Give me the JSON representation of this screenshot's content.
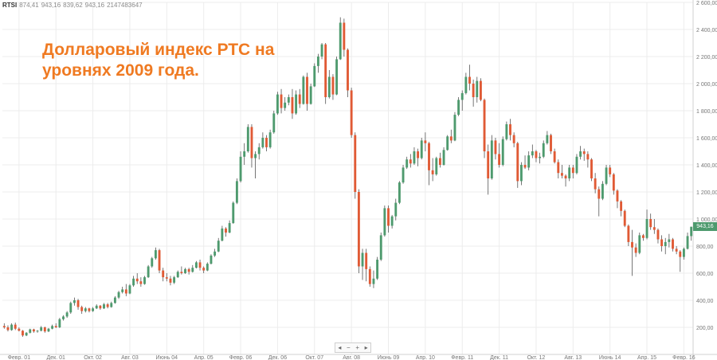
{
  "header": {
    "symbol": "RTSI",
    "open": "874,41",
    "high": "943,16",
    "low": "839,62",
    "close": "943,16",
    "volume": "2147483647"
  },
  "title": {
    "line1": "Долларовый индекс РТС на",
    "line2": "уровнях 2009 года."
  },
  "zoom_controls": [
    "◂",
    "−",
    "+",
    "▸"
  ],
  "last_price_label": "943,16",
  "colors": {
    "up": "#4e9a6e",
    "down": "#e05a35",
    "title": "#ef7a22",
    "grid": "#ececec"
  },
  "chart_data": {
    "type": "candlestick",
    "y_axis": {
      "min": 0,
      "max": 2600,
      "ticks": [
        200,
        400,
        600,
        800,
        1000,
        1200,
        1400,
        1600,
        1800,
        2000,
        2200,
        2400,
        2600
      ],
      "tick_labels": [
        "200,00",
        "400,00",
        "600,00",
        "800,00",
        "1 000,00",
        "1 200,00",
        "1 400,00",
        "1 600,00",
        "1 800,00",
        "2 000,00",
        "2 200,00",
        "2 400,00",
        "2 600,00"
      ],
      "position": "right"
    },
    "x_axis": {
      "start": "2000-10",
      "end": "2016-04",
      "ticks": [
        {
          "label": "Февр. 01",
          "date": "2001-02"
        },
        {
          "label": "Дек. 01",
          "date": "2001-12"
        },
        {
          "label": "Окт. 02",
          "date": "2002-10"
        },
        {
          "label": "Авг. 03",
          "date": "2003-08"
        },
        {
          "label": "Июнь 04",
          "date": "2004-06"
        },
        {
          "label": "Апр. 05",
          "date": "2005-04"
        },
        {
          "label": "Февр. 06",
          "date": "2006-02"
        },
        {
          "label": "Дек. 06",
          "date": "2006-12"
        },
        {
          "label": "Окт. 07",
          "date": "2007-10"
        },
        {
          "label": "Авг. 08",
          "date": "2008-08"
        },
        {
          "label": "Июнь 09",
          "date": "2009-06"
        },
        {
          "label": "Апр. 10",
          "date": "2010-04"
        },
        {
          "label": "Февр. 11",
          "date": "2011-02"
        },
        {
          "label": "Дек. 11",
          "date": "2011-12"
        },
        {
          "label": "Окт. 12",
          "date": "2012-10"
        },
        {
          "label": "Авг. 13",
          "date": "2013-08"
        },
        {
          "label": "Июнь 14",
          "date": "2014-06"
        },
        {
          "label": "Апр. 15",
          "date": "2015-04"
        },
        {
          "label": "Февр. 16",
          "date": "2016-02"
        }
      ]
    },
    "grid": true,
    "candles": [
      [
        "2000-10",
        210,
        230,
        190,
        200
      ],
      [
        "2000-11",
        200,
        215,
        170,
        180
      ],
      [
        "2000-12",
        180,
        230,
        175,
        220
      ],
      [
        "2001-01",
        220,
        235,
        180,
        190
      ],
      [
        "2001-02",
        190,
        200,
        170,
        175
      ],
      [
        "2001-03",
        175,
        180,
        130,
        140
      ],
      [
        "2001-04",
        140,
        165,
        135,
        160
      ],
      [
        "2001-05",
        160,
        190,
        155,
        185
      ],
      [
        "2001-06",
        185,
        190,
        160,
        170
      ],
      [
        "2001-07",
        170,
        180,
        160,
        175
      ],
      [
        "2001-08",
        175,
        210,
        170,
        200
      ],
      [
        "2001-09",
        200,
        205,
        160,
        170
      ],
      [
        "2001-10",
        170,
        195,
        165,
        190
      ],
      [
        "2001-11",
        190,
        220,
        185,
        210
      ],
      [
        "2001-12",
        210,
        230,
        195,
        200
      ],
      [
        "2002-01",
        200,
        270,
        195,
        260
      ],
      [
        "2002-02",
        260,
        290,
        250,
        280
      ],
      [
        "2002-03",
        280,
        320,
        270,
        310
      ],
      [
        "2002-04",
        310,
        390,
        300,
        380
      ],
      [
        "2002-05",
        380,
        420,
        360,
        400
      ],
      [
        "2002-06",
        400,
        410,
        330,
        350
      ],
      [
        "2002-07",
        350,
        360,
        300,
        320
      ],
      [
        "2002-08",
        320,
        350,
        310,
        340
      ],
      [
        "2002-09",
        340,
        345,
        310,
        320
      ],
      [
        "2002-10",
        320,
        350,
        315,
        340
      ],
      [
        "2002-11",
        340,
        370,
        335,
        360
      ],
      [
        "2002-12",
        360,
        365,
        330,
        340
      ],
      [
        "2003-01",
        340,
        380,
        335,
        370
      ],
      [
        "2003-02",
        370,
        380,
        340,
        350
      ],
      [
        "2003-03",
        350,
        390,
        345,
        380
      ],
      [
        "2003-04",
        380,
        430,
        375,
        420
      ],
      [
        "2003-05",
        420,
        470,
        410,
        460
      ],
      [
        "2003-06",
        460,
        500,
        450,
        480
      ],
      [
        "2003-07",
        480,
        520,
        430,
        450
      ],
      [
        "2003-08",
        450,
        520,
        445,
        510
      ],
      [
        "2003-09",
        510,
        580,
        500,
        560
      ],
      [
        "2003-10",
        560,
        600,
        520,
        540
      ],
      [
        "2003-11",
        540,
        570,
        500,
        520
      ],
      [
        "2003-12",
        520,
        580,
        515,
        570
      ],
      [
        "2004-01",
        570,
        660,
        565,
        650
      ],
      [
        "2004-02",
        650,
        720,
        640,
        710
      ],
      [
        "2004-03",
        710,
        790,
        700,
        770
      ],
      [
        "2004-04",
        770,
        780,
        600,
        620
      ],
      [
        "2004-05",
        620,
        640,
        540,
        570
      ],
      [
        "2004-06",
        570,
        600,
        540,
        560
      ],
      [
        "2004-07",
        560,
        580,
        510,
        530
      ],
      [
        "2004-08",
        530,
        580,
        520,
        570
      ],
      [
        "2004-09",
        570,
        620,
        565,
        610
      ],
      [
        "2004-10",
        610,
        650,
        590,
        600
      ],
      [
        "2004-11",
        600,
        640,
        595,
        630
      ],
      [
        "2004-12",
        630,
        640,
        590,
        610
      ],
      [
        "2005-01",
        610,
        660,
        605,
        640
      ],
      [
        "2005-02",
        640,
        690,
        635,
        680
      ],
      [
        "2005-03",
        680,
        700,
        620,
        640
      ],
      [
        "2005-04",
        640,
        650,
        600,
        620
      ],
      [
        "2005-05",
        620,
        680,
        615,
        670
      ],
      [
        "2005-06",
        670,
        740,
        665,
        730
      ],
      [
        "2005-07",
        730,
        780,
        720,
        760
      ],
      [
        "2005-08",
        760,
        860,
        755,
        840
      ],
      [
        "2005-09",
        840,
        950,
        835,
        930
      ],
      [
        "2005-10",
        930,
        940,
        870,
        900
      ],
      [
        "2005-11",
        900,
        990,
        895,
        970
      ],
      [
        "2005-12",
        970,
        1130,
        965,
        1120
      ],
      [
        "2006-01",
        1120,
        1300,
        1110,
        1280
      ],
      [
        "2006-02",
        1280,
        1500,
        1270,
        1460
      ],
      [
        "2006-03",
        1460,
        1560,
        1400,
        1500
      ],
      [
        "2006-04",
        1500,
        1700,
        1490,
        1680
      ],
      [
        "2006-05",
        1680,
        1700,
        1380,
        1450
      ],
      [
        "2006-06",
        1450,
        1500,
        1300,
        1480
      ],
      [
        "2006-07",
        1480,
        1560,
        1440,
        1530
      ],
      [
        "2006-08",
        1530,
        1640,
        1520,
        1600
      ],
      [
        "2006-09",
        1600,
        1620,
        1500,
        1530
      ],
      [
        "2006-10",
        1530,
        1660,
        1520,
        1640
      ],
      [
        "2006-11",
        1640,
        1800,
        1630,
        1780
      ],
      [
        "2006-12",
        1780,
        1940,
        1770,
        1920
      ],
      [
        "2007-01",
        1920,
        1960,
        1780,
        1820
      ],
      [
        "2007-02",
        1820,
        1900,
        1800,
        1860
      ],
      [
        "2007-03",
        1860,
        1920,
        1840,
        1900
      ],
      [
        "2007-04",
        1900,
        1960,
        1740,
        1780
      ],
      [
        "2007-05",
        1780,
        1950,
        1770,
        1920
      ],
      [
        "2007-06",
        1920,
        1960,
        1820,
        1850
      ],
      [
        "2007-07",
        1850,
        2060,
        1845,
        2050
      ],
      [
        "2007-08",
        2050,
        2080,
        1800,
        1850
      ],
      [
        "2007-09",
        1850,
        2000,
        1845,
        1980
      ],
      [
        "2007-10",
        1980,
        2150,
        1975,
        2130
      ],
      [
        "2007-11",
        2130,
        2220,
        2080,
        2200
      ],
      [
        "2007-12",
        2200,
        2300,
        2180,
        2290
      ],
      [
        "2008-01",
        2290,
        2300,
        1850,
        1900
      ],
      [
        "2008-02",
        1900,
        2100,
        1890,
        2050
      ],
      [
        "2008-03",
        2050,
        2070,
        1880,
        1920
      ],
      [
        "2008-04",
        1920,
        2200,
        1915,
        2180
      ],
      [
        "2008-05",
        2180,
        2490,
        2175,
        2450
      ],
      [
        "2008-06",
        2450,
        2480,
        2200,
        2250
      ],
      [
        "2008-07",
        2250,
        2260,
        1900,
        1950
      ],
      [
        "2008-08",
        1950,
        1970,
        1600,
        1620
      ],
      [
        "2008-09",
        1620,
        1640,
        1150,
        1200
      ],
      [
        "2008-10",
        1200,
        1220,
        600,
        650
      ],
      [
        "2008-11",
        650,
        780,
        550,
        750
      ],
      [
        "2008-12",
        750,
        780,
        540,
        630
      ],
      [
        "2009-01",
        630,
        650,
        500,
        520
      ],
      [
        "2009-02",
        520,
        620,
        490,
        560
      ],
      [
        "2009-03",
        560,
        720,
        550,
        700
      ],
      [
        "2009-04",
        700,
        900,
        690,
        880
      ],
      [
        "2009-05",
        880,
        1100,
        870,
        1080
      ],
      [
        "2009-06",
        1080,
        1100,
        900,
        950
      ],
      [
        "2009-07",
        950,
        1030,
        930,
        1020
      ],
      [
        "2009-08",
        1020,
        1150,
        990,
        1120
      ],
      [
        "2009-09",
        1120,
        1280,
        1110,
        1270
      ],
      [
        "2009-10",
        1270,
        1400,
        1260,
        1380
      ],
      [
        "2009-11",
        1380,
        1460,
        1370,
        1440
      ],
      [
        "2009-12",
        1440,
        1480,
        1380,
        1410
      ],
      [
        "2010-01",
        1410,
        1530,
        1400,
        1500
      ],
      [
        "2010-02",
        1500,
        1520,
        1390,
        1450
      ],
      [
        "2010-03",
        1450,
        1600,
        1440,
        1580
      ],
      [
        "2010-04",
        1580,
        1640,
        1500,
        1560
      ],
      [
        "2010-05",
        1560,
        1570,
        1250,
        1360
      ],
      [
        "2010-06",
        1360,
        1450,
        1280,
        1330
      ],
      [
        "2010-07",
        1330,
        1460,
        1320,
        1450
      ],
      [
        "2010-08",
        1450,
        1490,
        1380,
        1400
      ],
      [
        "2010-09",
        1400,
        1530,
        1395,
        1510
      ],
      [
        "2010-10",
        1510,
        1620,
        1505,
        1610
      ],
      [
        "2010-11",
        1610,
        1660,
        1560,
        1580
      ],
      [
        "2010-12",
        1580,
        1790,
        1575,
        1770
      ],
      [
        "2011-01",
        1770,
        1900,
        1760,
        1880
      ],
      [
        "2011-02",
        1880,
        1950,
        1800,
        1930
      ],
      [
        "2011-03",
        1930,
        2080,
        1920,
        2050
      ],
      [
        "2011-04",
        2050,
        2140,
        1950,
        2000
      ],
      [
        "2011-05",
        2000,
        2030,
        1830,
        1900
      ],
      [
        "2011-06",
        1900,
        2050,
        1860,
        2020
      ],
      [
        "2011-07",
        2020,
        2040,
        1870,
        1880
      ],
      [
        "2011-08",
        1880,
        1890,
        1450,
        1500
      ],
      [
        "2011-09",
        1500,
        1550,
        1180,
        1300
      ],
      [
        "2011-10",
        1300,
        1620,
        1290,
        1580
      ],
      [
        "2011-11",
        1580,
        1600,
        1440,
        1480
      ],
      [
        "2011-12",
        1480,
        1560,
        1380,
        1400
      ],
      [
        "2012-01",
        1400,
        1610,
        1390,
        1590
      ],
      [
        "2012-02",
        1590,
        1720,
        1580,
        1700
      ],
      [
        "2012-03",
        1700,
        1740,
        1580,
        1620
      ],
      [
        "2012-04",
        1620,
        1640,
        1530,
        1560
      ],
      [
        "2012-05",
        1560,
        1570,
        1230,
        1280
      ],
      [
        "2012-06",
        1280,
        1420,
        1250,
        1400
      ],
      [
        "2012-07",
        1400,
        1470,
        1370,
        1380
      ],
      [
        "2012-08",
        1380,
        1500,
        1360,
        1470
      ],
      [
        "2012-09",
        1470,
        1550,
        1450,
        1500
      ],
      [
        "2012-10",
        1500,
        1510,
        1420,
        1450
      ],
      [
        "2012-11",
        1450,
        1490,
        1410,
        1460
      ],
      [
        "2012-12",
        1460,
        1580,
        1450,
        1560
      ],
      [
        "2013-01",
        1560,
        1650,
        1550,
        1620
      ],
      [
        "2013-02",
        1620,
        1630,
        1480,
        1500
      ],
      [
        "2013-03",
        1500,
        1520,
        1410,
        1420
      ],
      [
        "2013-04",
        1420,
        1440,
        1300,
        1340
      ],
      [
        "2013-05",
        1340,
        1400,
        1300,
        1320
      ],
      [
        "2013-06",
        1320,
        1330,
        1240,
        1300
      ],
      [
        "2013-07",
        1300,
        1400,
        1280,
        1380
      ],
      [
        "2013-08",
        1380,
        1400,
        1300,
        1340
      ],
      [
        "2013-09",
        1340,
        1480,
        1330,
        1460
      ],
      [
        "2013-10",
        1460,
        1540,
        1440,
        1500
      ],
      [
        "2013-11",
        1500,
        1520,
        1430,
        1480
      ],
      [
        "2013-12",
        1480,
        1500,
        1380,
        1440
      ],
      [
        "2014-01",
        1440,
        1450,
        1280,
        1300
      ],
      [
        "2014-02",
        1300,
        1340,
        1190,
        1220
      ],
      [
        "2014-03",
        1220,
        1240,
        1020,
        1150
      ],
      [
        "2014-04",
        1150,
        1280,
        1140,
        1260
      ],
      [
        "2014-05",
        1260,
        1400,
        1250,
        1380
      ],
      [
        "2014-06",
        1380,
        1400,
        1310,
        1330
      ],
      [
        "2014-07",
        1330,
        1340,
        1180,
        1210
      ],
      [
        "2014-08",
        1210,
        1220,
        1080,
        1130
      ],
      [
        "2014-09",
        1130,
        1140,
        1020,
        1060
      ],
      [
        "2014-10",
        1060,
        1070,
        940,
        950
      ],
      [
        "2014-11",
        950,
        960,
        800,
        830
      ],
      [
        "2014-12",
        830,
        920,
        580,
        790
      ],
      [
        "2015-01",
        790,
        820,
        720,
        750
      ],
      [
        "2015-02",
        750,
        900,
        740,
        880
      ],
      [
        "2015-03",
        880,
        890,
        840,
        860
      ],
      [
        "2015-04",
        860,
        1070,
        850,
        1000
      ],
      [
        "2015-05",
        1000,
        1040,
        920,
        940
      ],
      [
        "2015-06",
        940,
        1000,
        890,
        920
      ],
      [
        "2015-07",
        920,
        930,
        820,
        850
      ],
      [
        "2015-08",
        850,
        880,
        760,
        800
      ],
      [
        "2015-09",
        800,
        860,
        740,
        830
      ],
      [
        "2015-10",
        830,
        890,
        790,
        850
      ],
      [
        "2015-11",
        850,
        860,
        760,
        780
      ],
      [
        "2015-12",
        780,
        800,
        740,
        760
      ],
      [
        "2016-01",
        760,
        770,
        610,
        720
      ],
      [
        "2016-02",
        720,
        790,
        700,
        780
      ],
      [
        "2016-03",
        780,
        900,
        775,
        874
      ],
      [
        "2016-04",
        874,
        943,
        840,
        943
      ]
    ]
  }
}
